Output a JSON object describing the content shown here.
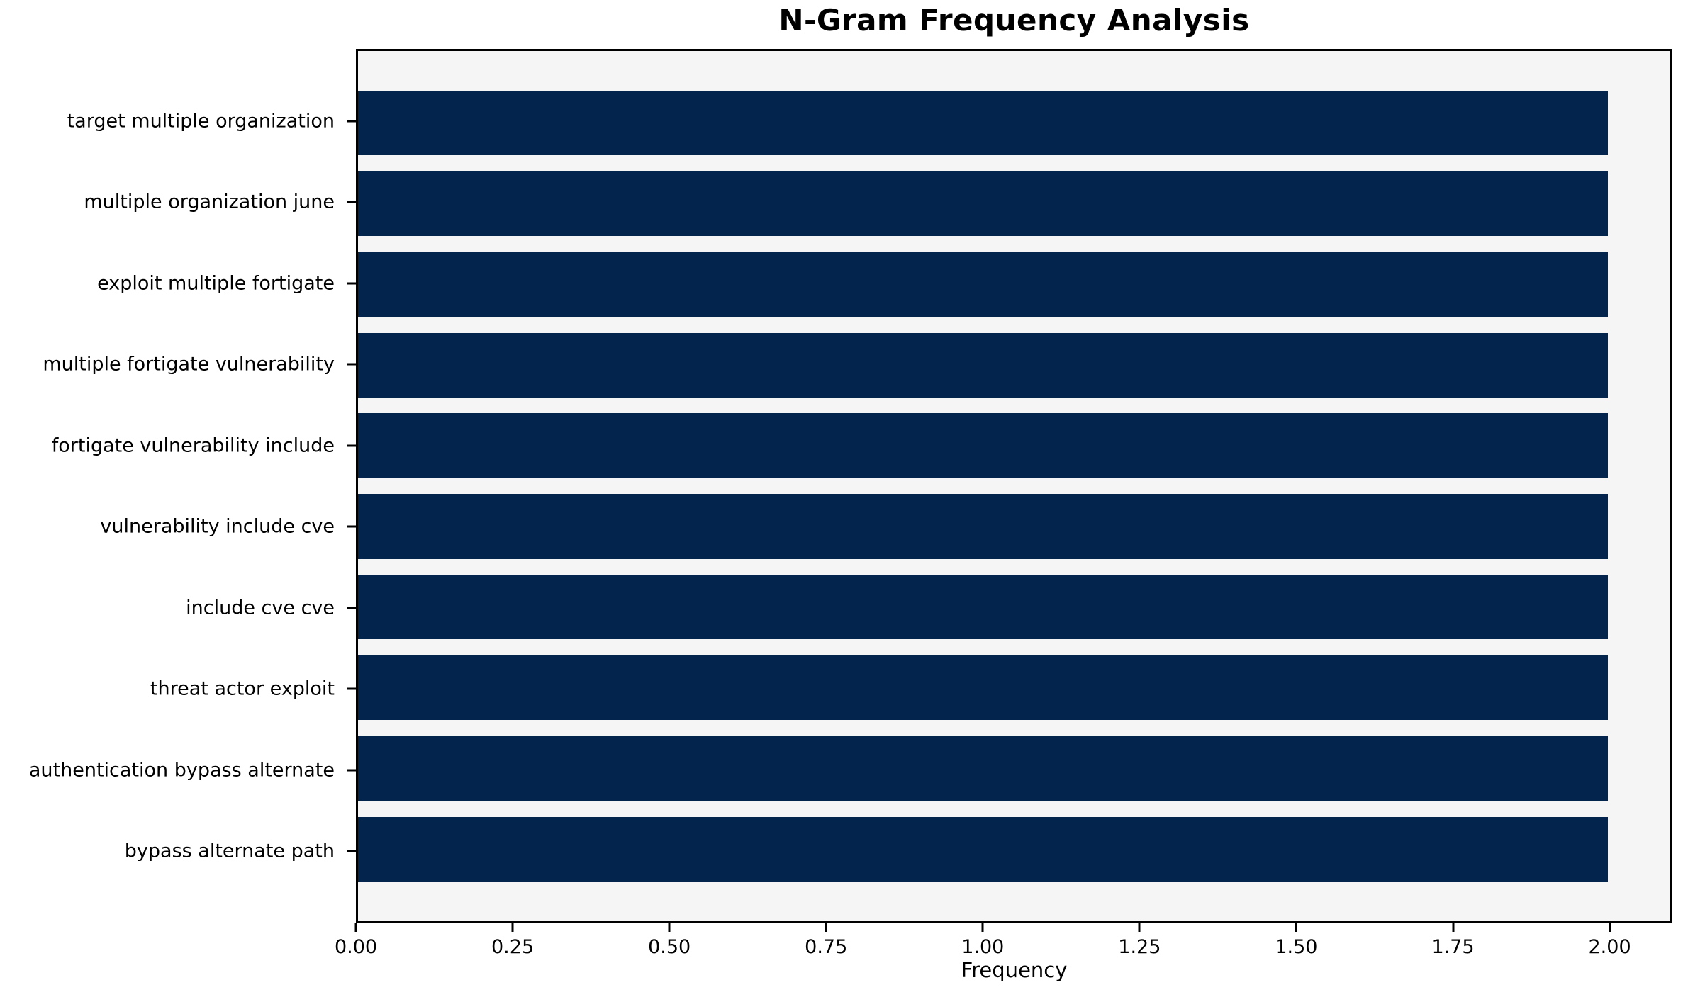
{
  "chart_data": {
    "type": "bar",
    "orientation": "horizontal",
    "title": "N-Gram Frequency Analysis",
    "xlabel": "Frequency",
    "ylabel": "",
    "categories": [
      "target multiple organization",
      "multiple organization june",
      "exploit multiple fortigate",
      "multiple fortigate vulnerability",
      "fortigate vulnerability include",
      "vulnerability include cve",
      "include cve cve",
      "threat actor exploit",
      "authentication bypass alternate",
      "bypass alternate path"
    ],
    "values": [
      2,
      2,
      2,
      2,
      2,
      2,
      2,
      2,
      2,
      2
    ],
    "xlim": [
      0,
      2.1
    ],
    "xticks": [
      {
        "value": 0.0,
        "label": "0.00"
      },
      {
        "value": 0.25,
        "label": "0.25"
      },
      {
        "value": 0.5,
        "label": "0.50"
      },
      {
        "value": 0.75,
        "label": "0.75"
      },
      {
        "value": 1.0,
        "label": "1.00"
      },
      {
        "value": 1.25,
        "label": "1.25"
      },
      {
        "value": 1.5,
        "label": "1.50"
      },
      {
        "value": 1.75,
        "label": "1.75"
      },
      {
        "value": 2.0,
        "label": "2.00"
      }
    ],
    "grid": false,
    "legend_position": "none",
    "colors": {
      "bar": "#03254d",
      "plot_background": "#f5f5f5",
      "figure_background": "#ffffff",
      "text": "#000000",
      "spine": "#000000"
    }
  }
}
